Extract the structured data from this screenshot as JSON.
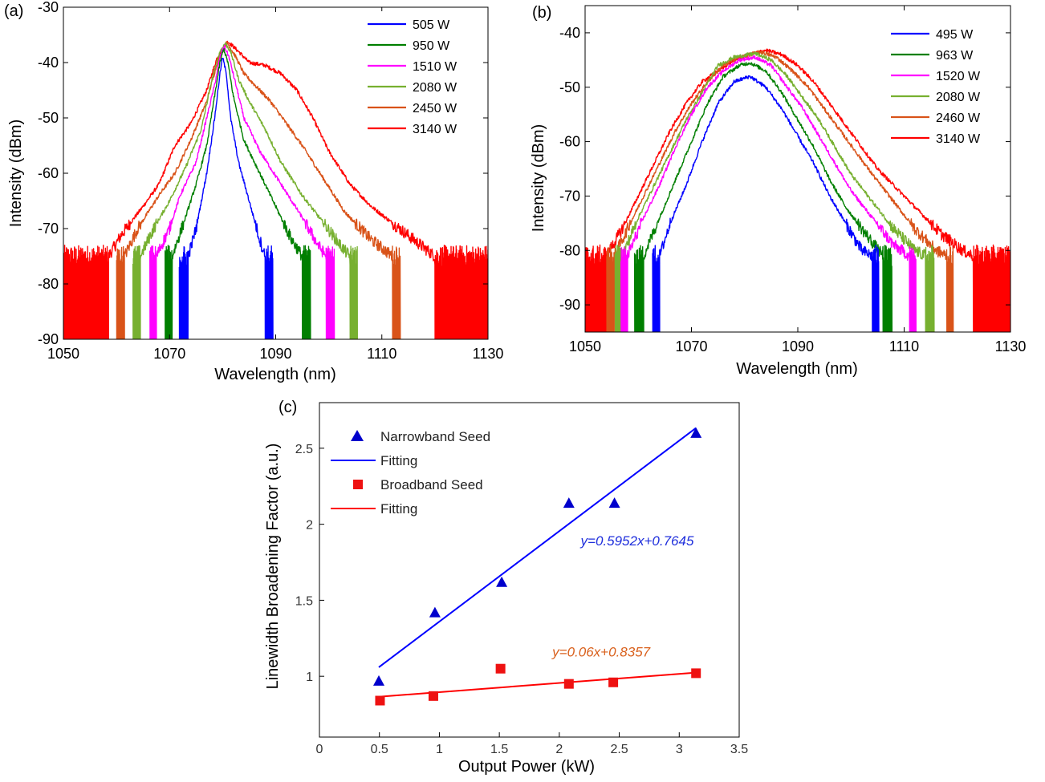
{
  "chart_data": [
    {
      "panel": "(a)",
      "type": "line",
      "xlabel": "Wavelength (nm)",
      "ylabel": "Intensity (dBm)",
      "xlim": [
        1050,
        1130
      ],
      "ylim": [
        -90,
        -30
      ],
      "xticks": [
        1050,
        1070,
        1090,
        1110,
        1130
      ],
      "yticks": [
        -30,
        -40,
        -50,
        -60,
        -70,
        -80,
        -90
      ],
      "legend_position": "top-right",
      "noise_floor_dBm": -75,
      "series": [
        {
          "name": "505 W",
          "color": "#0000ff",
          "peak_x": 1080,
          "peak_y": -39,
          "spectrum": [
            [
              1073.5,
              -75
            ],
            [
              1075,
              -70
            ],
            [
              1077,
              -60
            ],
            [
              1078.5,
              -50
            ],
            [
              1079.5,
              -42
            ],
            [
              1080,
              -39
            ],
            [
              1080.7,
              -42
            ],
            [
              1081.5,
              -50
            ],
            [
              1083,
              -58
            ],
            [
              1085,
              -65
            ],
            [
              1087,
              -72
            ],
            [
              1088,
              -75
            ]
          ]
        },
        {
          "name": "950 W",
          "color": "#007f00",
          "peak_x": 1080,
          "peak_y": -37.5,
          "spectrum": [
            [
              1070.5,
              -75
            ],
            [
              1073,
              -68
            ],
            [
              1075,
              -62
            ],
            [
              1077,
              -55
            ],
            [
              1078.5,
              -46
            ],
            [
              1079.5,
              -40
            ],
            [
              1080.2,
              -37.5
            ],
            [
              1081,
              -40
            ],
            [
              1082,
              -46
            ],
            [
              1084,
              -54
            ],
            [
              1087,
              -60
            ],
            [
              1090,
              -66
            ],
            [
              1093,
              -72
            ],
            [
              1095,
              -75
            ]
          ]
        },
        {
          "name": "1510 W",
          "color": "#ff00ff",
          "peak_x": 1080.3,
          "peak_y": -37,
          "spectrum": [
            [
              1067.5,
              -75
            ],
            [
              1070,
              -70
            ],
            [
              1072,
              -64
            ],
            [
              1075,
              -58
            ],
            [
              1077,
              -50
            ],
            [
              1078.5,
              -44
            ],
            [
              1079.5,
              -39
            ],
            [
              1080.3,
              -37
            ],
            [
              1081.2,
              -39
            ],
            [
              1082.5,
              -44
            ],
            [
              1084,
              -50
            ],
            [
              1087,
              -56
            ],
            [
              1091,
              -62
            ],
            [
              1095,
              -68
            ],
            [
              1098,
              -73
            ],
            [
              1099.5,
              -75
            ]
          ]
        },
        {
          "name": "2080 W",
          "color": "#77b030",
          "peak_x": 1080.5,
          "peak_y": -36.5,
          "spectrum": [
            [
              1064.5,
              -75
            ],
            [
              1067,
              -70
            ],
            [
              1070,
              -65
            ],
            [
              1073,
              -59
            ],
            [
              1076,
              -52
            ],
            [
              1078,
              -43
            ],
            [
              1079.5,
              -38
            ],
            [
              1080.5,
              -36.5
            ],
            [
              1081.5,
              -38
            ],
            [
              1083,
              -43
            ],
            [
              1085,
              -47
            ],
            [
              1088,
              -52
            ],
            [
              1091,
              -58
            ],
            [
              1095,
              -64
            ],
            [
              1099,
              -69
            ],
            [
              1103,
              -74
            ],
            [
              1104,
              -75
            ]
          ]
        },
        {
          "name": "2450 W",
          "color": "#d95319",
          "peak_x": 1080.8,
          "peak_y": -36.3,
          "spectrum": [
            [
              1061.5,
              -75
            ],
            [
              1064,
              -70
            ],
            [
              1068,
              -64
            ],
            [
              1071,
              -60
            ],
            [
              1074,
              -54
            ],
            [
              1077,
              -47
            ],
            [
              1079,
              -40
            ],
            [
              1080.8,
              -36.3
            ],
            [
              1082.5,
              -39
            ],
            [
              1084,
              -42
            ],
            [
              1086,
              -44
            ],
            [
              1089,
              -47
            ],
            [
              1092,
              -51
            ],
            [
              1095,
              -55
            ],
            [
              1099,
              -61
            ],
            [
              1103,
              -67
            ],
            [
              1108,
              -72
            ],
            [
              1112,
              -75
            ]
          ]
        },
        {
          "name": "3140 W",
          "color": "#ff0000",
          "peak_x": 1081,
          "peak_y": -36.2,
          "spectrum": [
            [
              1058.5,
              -75
            ],
            [
              1061,
              -71
            ],
            [
              1065,
              -66
            ],
            [
              1068,
              -62
            ],
            [
              1071,
              -55
            ],
            [
              1074,
              -51
            ],
            [
              1077,
              -45
            ],
            [
              1079,
              -39
            ],
            [
              1081,
              -36.2
            ],
            [
              1083,
              -38
            ],
            [
              1085,
              -40
            ],
            [
              1088,
              -40.5
            ],
            [
              1091,
              -42
            ],
            [
              1094,
              -45
            ],
            [
              1097,
              -50
            ],
            [
              1100,
              -56
            ],
            [
              1104,
              -62
            ],
            [
              1108,
              -66
            ],
            [
              1112,
              -69
            ],
            [
              1116,
              -72
            ],
            [
              1120,
              -75
            ]
          ]
        }
      ]
    },
    {
      "panel": "(b)",
      "type": "line",
      "xlabel": "Wavelength (nm)",
      "ylabel": "Intensity (dBm)",
      "xlim": [
        1050,
        1130
      ],
      "ylim": [
        -95,
        -35
      ],
      "xticks": [
        1050,
        1070,
        1090,
        1110,
        1130
      ],
      "yticks": [
        -40,
        -50,
        -60,
        -70,
        -80,
        -90
      ],
      "legend_position": "top-right",
      "noise_floor_dBm": -81,
      "series": [
        {
          "name": "495 W",
          "color": "#0000ff",
          "peak_x": 1081,
          "peak_y": -48,
          "spectrum": [
            [
              1064,
              -81
            ],
            [
              1066,
              -75
            ],
            [
              1069,
              -68
            ],
            [
              1072,
              -60
            ],
            [
              1075,
              -53
            ],
            [
              1078,
              -49
            ],
            [
              1081,
              -48
            ],
            [
              1084,
              -50
            ],
            [
              1087,
              -54
            ],
            [
              1090,
              -59
            ],
            [
              1093,
              -64
            ],
            [
              1096,
              -70
            ],
            [
              1099,
              -75
            ],
            [
              1102,
              -80
            ],
            [
              1104,
              -81
            ]
          ]
        },
        {
          "name": "963 W",
          "color": "#007f00",
          "peak_x": 1081,
          "peak_y": -45.5,
          "spectrum": [
            [
              1061,
              -81
            ],
            [
              1064,
              -74
            ],
            [
              1067,
              -67
            ],
            [
              1070,
              -60
            ],
            [
              1073,
              -53
            ],
            [
              1076,
              -48
            ],
            [
              1079,
              -46
            ],
            [
              1081,
              -45.5
            ],
            [
              1084,
              -47
            ],
            [
              1087,
              -51
            ],
            [
              1090,
              -56
            ],
            [
              1093,
              -61
            ],
            [
              1096,
              -67
            ],
            [
              1099,
              -72
            ],
            [
              1102,
              -76
            ],
            [
              1106,
              -81
            ]
          ]
        },
        {
          "name": "1520 W",
          "color": "#ff00ff",
          "peak_x": 1082,
          "peak_y": -44.5,
          "spectrum": [
            [
              1058,
              -81
            ],
            [
              1061,
              -74
            ],
            [
              1064,
              -68
            ],
            [
              1067,
              -61
            ],
            [
              1070,
              -55
            ],
            [
              1073,
              -50
            ],
            [
              1076,
              -47
            ],
            [
              1079,
              -45
            ],
            [
              1082,
              -44.5
            ],
            [
              1085,
              -46
            ],
            [
              1088,
              -50
            ],
            [
              1091,
              -54
            ],
            [
              1094,
              -59
            ],
            [
              1097,
              -64
            ],
            [
              1100,
              -69
            ],
            [
              1104,
              -74
            ],
            [
              1108,
              -79
            ],
            [
              1111,
              -81
            ]
          ]
        },
        {
          "name": "2080 W",
          "color": "#77b030",
          "peak_x": 1082,
          "peak_y": -43.8,
          "spectrum": [
            [
              1057,
              -81
            ],
            [
              1060,
              -74
            ],
            [
              1063,
              -68
            ],
            [
              1066,
              -62
            ],
            [
              1069,
              -56
            ],
            [
              1072,
              -51
            ],
            [
              1075,
              -46
            ],
            [
              1078,
              -44.5
            ],
            [
              1082,
              -43.8
            ],
            [
              1085,
              -45
            ],
            [
              1088,
              -48
            ],
            [
              1091,
              -52
            ],
            [
              1094,
              -56
            ],
            [
              1097,
              -61
            ],
            [
              1100,
              -66
            ],
            [
              1104,
              -71
            ],
            [
              1108,
              -76
            ],
            [
              1112,
              -80
            ],
            [
              1114,
              -81
            ]
          ]
        },
        {
          "name": "2460 W",
          "color": "#d95319",
          "peak_x": 1083,
          "peak_y": -43.5,
          "spectrum": [
            [
              1055.5,
              -81
            ],
            [
              1058,
              -76
            ],
            [
              1061,
              -70
            ],
            [
              1064,
              -64
            ],
            [
              1067,
              -58
            ],
            [
              1070,
              -53
            ],
            [
              1073,
              -49
            ],
            [
              1076,
              -46
            ],
            [
              1079,
              -44.5
            ],
            [
              1083,
              -43.5
            ],
            [
              1086,
              -44.5
            ],
            [
              1089,
              -47
            ],
            [
              1092,
              -50
            ],
            [
              1095,
              -54
            ],
            [
              1098,
              -58
            ],
            [
              1101,
              -62
            ],
            [
              1104,
              -66
            ],
            [
              1108,
              -71
            ],
            [
              1112,
              -76
            ],
            [
              1116,
              -80
            ],
            [
              1118,
              -81
            ]
          ]
        },
        {
          "name": "3140 W",
          "color": "#ff0000",
          "peak_x": 1084,
          "peak_y": -43.2,
          "spectrum": [
            [
              1054,
              -81
            ],
            [
              1057,
              -76
            ],
            [
              1060,
              -70
            ],
            [
              1063,
              -64
            ],
            [
              1066,
              -58
            ],
            [
              1069,
              -53
            ],
            [
              1072,
              -49
            ],
            [
              1075,
              -47
            ],
            [
              1078,
              -45
            ],
            [
              1081,
              -44
            ],
            [
              1084,
              -43.2
            ],
            [
              1087,
              -44
            ],
            [
              1090,
              -46
            ],
            [
              1093,
              -49
            ],
            [
              1096,
              -53
            ],
            [
              1099,
              -57
            ],
            [
              1102,
              -61
            ],
            [
              1105,
              -65
            ],
            [
              1109,
              -69
            ],
            [
              1113,
              -73
            ],
            [
              1117,
              -77
            ],
            [
              1121,
              -80
            ],
            [
              1123,
              -81
            ]
          ]
        }
      ]
    },
    {
      "panel": "(c)",
      "type": "scatter",
      "xlabel": "Output Power (kW)",
      "ylabel": "Linewidth Broadening Factor (a.u.)",
      "xlim": [
        0,
        3.5
      ],
      "ylim": [
        0.6,
        2.8
      ],
      "xticks": [
        0,
        0.5,
        1,
        1.5,
        2,
        2.5,
        3,
        3.5
      ],
      "xtick_labels": [
        "0",
        "0.5",
        "1",
        "1.5",
        "2",
        "2.5",
        "3",
        "3.5"
      ],
      "yticks": [
        1,
        1.5,
        2,
        2.5
      ],
      "ytick_labels": [
        "1",
        "1.5",
        "2",
        "2.5"
      ],
      "legend_position": "top-left",
      "series": [
        {
          "name": "Narrowband Seed",
          "marker": "triangle",
          "color": "#0000cc",
          "x": [
            0.495,
            0.963,
            1.52,
            2.08,
            2.46,
            3.14
          ],
          "y": [
            0.97,
            1.42,
            1.62,
            2.14,
            2.14,
            2.6
          ]
        },
        {
          "name": "Fitting",
          "line": true,
          "color": "#0000ff",
          "slope": 0.5952,
          "intercept": 0.7645,
          "x_range": [
            0.495,
            3.14
          ]
        },
        {
          "name": "Broadband Seed",
          "marker": "square",
          "color": "#ee1111",
          "x": [
            0.505,
            0.95,
            1.51,
            2.08,
            2.45,
            3.14
          ],
          "y": [
            0.84,
            0.87,
            1.05,
            0.95,
            0.96,
            1.02
          ]
        },
        {
          "name": "Fitting",
          "line": true,
          "color": "#ff0000",
          "slope": 0.06,
          "intercept": 0.8357,
          "x_range": [
            0.505,
            3.14
          ]
        }
      ],
      "annotations": [
        {
          "text": "y=0.5952x+0.7645",
          "color": "#1f2fdc",
          "x": 2.65,
          "y": 1.86
        },
        {
          "text": "y=0.06x+0.8357",
          "color": "#d9601c",
          "x": 2.35,
          "y": 1.13
        }
      ]
    }
  ]
}
